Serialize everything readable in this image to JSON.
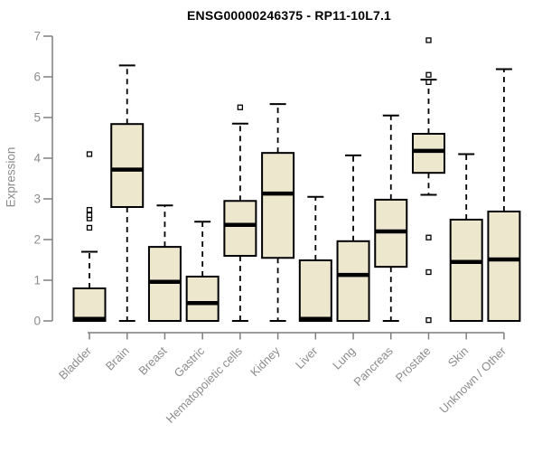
{
  "title": "ENSG00000246375 - RP11-10L7.1",
  "colors": {
    "background": "#FFFFFF",
    "box_fill": "#ECE7CD",
    "box_stroke": "#000000",
    "median_color": "#000000",
    "whisker_color": "#000000",
    "outlier_stroke": "#000000",
    "axis_line": "#7F7F7F",
    "axis_text": "#8C8C8C",
    "title_color": "#000000"
  },
  "chart_data": {
    "type": "boxplot",
    "title": "ENSG00000246375 - RP11-10L7.1",
    "xlabel": "",
    "ylabel": "Expression",
    "ylim": [
      0,
      7
    ],
    "yticks": [
      0,
      1,
      2,
      3,
      4,
      5,
      6,
      7
    ],
    "grid": false,
    "legend": "none",
    "categories": [
      "Bladder",
      "Brain",
      "Breast",
      "Gastric",
      "Hematopoietic cells",
      "Kidney",
      "Liver",
      "Lung",
      "Pancreas",
      "Prostate",
      "Skin",
      "Unknown / Other"
    ],
    "series": [
      {
        "category": "Bladder",
        "low": 0,
        "q1": 0,
        "median": 0.05,
        "q3": 0.8,
        "high": 1.7,
        "outliers": [
          2.29,
          2.52,
          2.6,
          2.73,
          4.1
        ]
      },
      {
        "category": "Brain",
        "low": 0,
        "q1": 2.8,
        "median": 3.72,
        "q3": 4.84,
        "high": 6.28,
        "outliers": []
      },
      {
        "category": "Breast",
        "low": 0,
        "q1": 0,
        "median": 0.96,
        "q3": 1.82,
        "high": 2.84,
        "outliers": []
      },
      {
        "category": "Gastric",
        "low": 0,
        "q1": 0,
        "median": 0.44,
        "q3": 1.09,
        "high": 2.44,
        "outliers": []
      },
      {
        "category": "Hematopoietic cells",
        "low": 0,
        "q1": 1.6,
        "median": 2.36,
        "q3": 2.95,
        "high": 4.85,
        "outliers": [
          5.25
        ]
      },
      {
        "category": "Kidney",
        "low": 0,
        "q1": 1.55,
        "median": 3.13,
        "q3": 4.13,
        "high": 5.33,
        "outliers": []
      },
      {
        "category": "Liver",
        "low": 0,
        "q1": 0,
        "median": 0.05,
        "q3": 1.49,
        "high": 3.05,
        "outliers": []
      },
      {
        "category": "Lung",
        "low": 0,
        "q1": 0,
        "median": 1.13,
        "q3": 1.96,
        "high": 4.07,
        "outliers": []
      },
      {
        "category": "Pancreas",
        "low": 0,
        "q1": 1.33,
        "median": 2.2,
        "q3": 2.98,
        "high": 5.05,
        "outliers": []
      },
      {
        "category": "Prostate",
        "low": 3.1,
        "q1": 3.64,
        "median": 4.18,
        "q3": 4.6,
        "high": 5.93,
        "outliers": [
          6.9,
          6.05,
          5.87,
          2.05,
          1.2,
          0.02
        ]
      },
      {
        "category": "Skin",
        "low": 0,
        "q1": 0,
        "median": 1.45,
        "q3": 2.49,
        "high": 4.1,
        "outliers": []
      },
      {
        "category": "Unknown / Other",
        "low": 0,
        "q1": 0,
        "median": 1.51,
        "q3": 2.69,
        "high": 6.19,
        "outliers": []
      }
    ]
  }
}
